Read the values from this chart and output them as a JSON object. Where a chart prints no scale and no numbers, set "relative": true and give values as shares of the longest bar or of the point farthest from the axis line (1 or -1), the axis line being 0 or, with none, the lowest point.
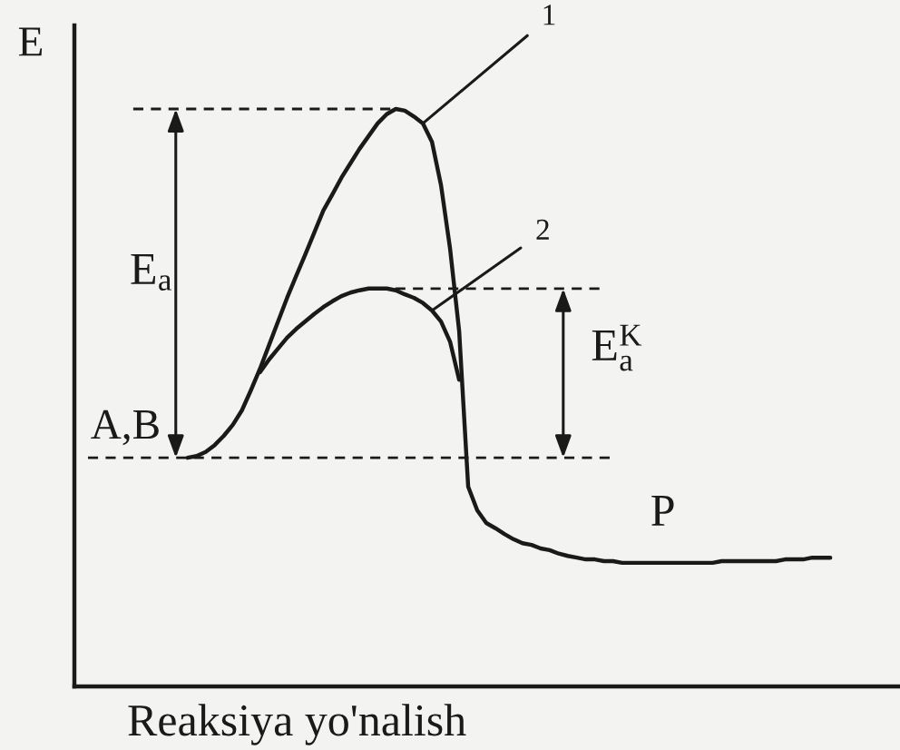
{
  "chart_data": {
    "type": "line",
    "relative": true,
    "xlabel": "Reaksiya yo'nalish",
    "ylabel": "E",
    "categories": [
      null,
      null,
      null,
      null,
      null,
      null,
      null,
      null,
      null,
      null,
      null,
      null,
      null,
      null,
      null,
      null,
      null,
      null,
      null,
      null,
      null,
      null,
      null,
      null,
      null,
      null,
      null,
      null,
      null,
      null,
      null,
      null,
      null,
      null,
      null,
      null,
      null,
      null,
      null,
      null,
      null,
      null,
      null,
      null,
      null,
      null,
      null,
      null,
      null,
      null,
      null,
      null,
      null,
      null,
      null,
      null,
      null,
      null,
      null,
      null,
      null,
      null,
      null,
      null,
      null,
      null,
      null,
      null,
      null,
      null,
      null,
      null,
      null,
      null,
      null,
      null,
      null,
      null,
      null,
      null,
      null,
      null,
      null,
      null,
      null,
      null,
      null,
      null,
      null,
      null,
      null
    ],
    "series": [
      {
        "color": "#1a1a1a",
        "line_style": "solid",
        "values": [
          null,
          null,
          null,
          null,
          null,
          null,
          null,
          null,
          null,
          null,
          null,
          null,
          0.396,
          0.399,
          0.406,
          0.418,
          0.434,
          0.453,
          0.478,
          0.513,
          0.55,
          0.591,
          0.632,
          0.673,
          0.711,
          0.748,
          0.786,
          0.824,
          0.852,
          0.881,
          0.906,
          0.931,
          0.953,
          0.975,
          0.991,
          1.0,
          0.997,
          0.987,
          0.975,
          0.943,
          0.868,
          0.758,
          0.616,
          0.346,
          0.305,
          0.283,
          0.274,
          0.264,
          0.255,
          0.248,
          0.245,
          0.239,
          0.236,
          0.23,
          0.226,
          0.223,
          0.22,
          0.22,
          0.217,
          0.217,
          0.214,
          0.214,
          0.214,
          0.214,
          0.214,
          0.214,
          0.214,
          0.214,
          0.214,
          0.214,
          0.214,
          0.217,
          0.217,
          0.217,
          0.217,
          0.217,
          0.217,
          0.217,
          0.22,
          0.22,
          0.22,
          0.223,
          0.223,
          0.223,
          null,
          null,
          null,
          null,
          null,
          null,
          null
        ]
      },
      {
        "color": "#1a1a1a",
        "line_style": "solid",
        "values": [
          null,
          null,
          null,
          null,
          null,
          null,
          null,
          null,
          null,
          null,
          null,
          null,
          null,
          null,
          null,
          null,
          null,
          null,
          null,
          null,
          0.544,
          0.566,
          0.585,
          0.604,
          0.619,
          0.632,
          0.645,
          0.657,
          0.667,
          0.676,
          0.682,
          0.686,
          0.689,
          0.689,
          0.689,
          0.686,
          0.679,
          0.673,
          0.664,
          0.651,
          0.632,
          0.597,
          0.531,
          null,
          null,
          null,
          null,
          null,
          null,
          null,
          null,
          null,
          null,
          null,
          null,
          null,
          null,
          null,
          null,
          null,
          null,
          null,
          null,
          null,
          null,
          null,
          null,
          null,
          null,
          null,
          null,
          null,
          null,
          null,
          null,
          null,
          null,
          null,
          null,
          null,
          null,
          null,
          null,
          null,
          null,
          null,
          null,
          null,
          null,
          null,
          null
        ]
      },
      {
        "color": "#1a1a1a",
        "line_style": "dashed",
        "values": [
          null,
          null,
          null,
          null,
          null,
          null,
          1.0,
          1.0,
          1.0,
          1.0,
          1.0,
          1.0,
          1.0,
          1.0,
          1.0,
          1.0,
          1.0,
          1.0,
          1.0,
          1.0,
          1.0,
          1.0,
          1.0,
          1.0,
          1.0,
          1.0,
          1.0,
          1.0,
          1.0,
          1.0,
          1.0,
          1.0,
          1.0,
          1.0,
          1.0,
          1.0,
          null,
          null,
          null,
          null,
          null,
          null,
          null,
          null,
          null,
          null,
          null,
          null,
          null,
          null,
          null,
          null,
          null,
          null,
          null,
          null,
          null,
          null,
          null,
          null,
          null,
          null,
          null,
          null,
          null,
          null,
          null,
          null,
          null,
          null,
          null,
          null,
          null,
          null,
          null,
          null,
          null,
          null,
          null,
          null,
          null,
          null,
          null,
          null,
          null,
          null,
          null,
          null,
          null,
          null,
          null
        ]
      },
      {
        "color": "#1a1a1a",
        "line_style": "dashed",
        "values": [
          null,
          null,
          null,
          null,
          null,
          null,
          null,
          null,
          null,
          null,
          null,
          null,
          null,
          null,
          null,
          null,
          null,
          null,
          null,
          null,
          null,
          null,
          null,
          null,
          null,
          null,
          null,
          null,
          null,
          null,
          null,
          null,
          null,
          0.689,
          0.689,
          0.689,
          0.689,
          0.689,
          0.689,
          0.689,
          0.689,
          0.689,
          0.689,
          0.689,
          0.689,
          0.689,
          0.689,
          0.689,
          0.689,
          0.689,
          0.689,
          0.689,
          0.689,
          0.689,
          0.689,
          0.689,
          0.689,
          0.689,
          0.689,
          null,
          null,
          null,
          null,
          null,
          null,
          null,
          null,
          null,
          null,
          null,
          null,
          null,
          null,
          null,
          null,
          null,
          null,
          null,
          null,
          null,
          null,
          null,
          null,
          null,
          null,
          null,
          null,
          null,
          null,
          null,
          null
        ]
      },
      {
        "color": "#1a1a1a",
        "line_style": "dashed",
        "values": [
          null,
          0.396,
          0.396,
          0.396,
          0.396,
          0.396,
          0.396,
          0.396,
          0.396,
          0.396,
          0.396,
          0.396,
          0.396,
          0.396,
          0.396,
          0.396,
          0.396,
          0.396,
          0.396,
          0.396,
          0.396,
          0.396,
          0.396,
          0.396,
          0.396,
          0.396,
          0.396,
          0.396,
          0.396,
          0.396,
          0.396,
          0.396,
          0.396,
          0.396,
          0.396,
          0.396,
          0.396,
          0.396,
          0.396,
          0.396,
          0.396,
          0.396,
          0.396,
          0.396,
          0.396,
          0.396,
          0.396,
          0.396,
          0.396,
          0.396,
          0.396,
          0.396,
          0.396,
          0.396,
          0.396,
          0.396,
          0.396,
          0.396,
          0.396,
          0.396,
          null,
          null,
          null,
          null,
          null,
          null,
          null,
          null,
          null,
          null,
          null,
          null,
          null,
          null,
          null,
          null,
          null,
          null,
          null,
          null,
          null,
          null,
          null,
          null,
          null,
          null,
          null,
          null,
          null,
          null,
          null
        ]
      }
    ],
    "annotations": [
      "1",
      "2",
      "E$_{a}$",
      "E$^{K}$$_{a}$",
      "A,B",
      "P"
    ]
  }
}
